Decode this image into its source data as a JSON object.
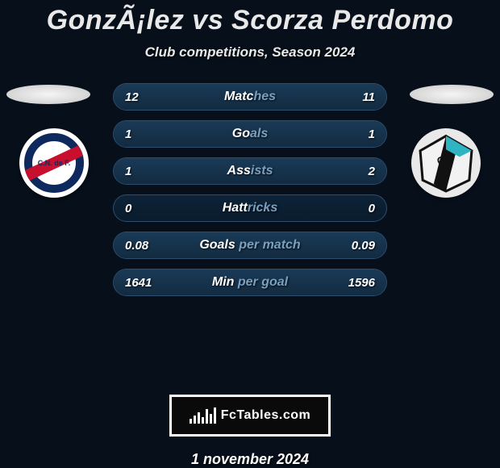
{
  "title": "GonzÃ¡lez vs Scorza Perdomo",
  "subtitle": "Club competitions, Season 2024",
  "brand": "FcTables.com",
  "date": "1 november 2024",
  "colors": {
    "background": "#060f1a",
    "row_border": "#2e4e6f",
    "row_bg_top": "#0d2338",
    "row_bg_bottom": "#0a1b2c",
    "bar_top": "#1a3a57",
    "bar_bottom": "#122b40",
    "text": "#e9e9e9",
    "label_dim": "#7aa0bf"
  },
  "badges": {
    "left": {
      "name": "Nacional",
      "text": "C.N. de F."
    },
    "right": {
      "name": "Cerro"
    }
  },
  "rows": [
    {
      "label_bright": "Matc",
      "label_dim": "hes",
      "left": "12",
      "right": "11",
      "left_pct": 52,
      "right_pct": 48
    },
    {
      "label_bright": "Go",
      "label_dim": "als",
      "left": "1",
      "right": "1",
      "left_pct": 50,
      "right_pct": 50
    },
    {
      "label_bright": "Ass",
      "label_dim": "ists",
      "left": "1",
      "right": "2",
      "left_pct": 33,
      "right_pct": 67
    },
    {
      "label_bright": "Hatt",
      "label_dim": "ricks",
      "left": "0",
      "right": "0",
      "left_pct": 0,
      "right_pct": 0
    },
    {
      "label_bright": "Goals ",
      "label_dim": "per match",
      "left": "0.08",
      "right": "0.09",
      "left_pct": 47,
      "right_pct": 53
    },
    {
      "label_bright": "Min ",
      "label_dim": "per goal",
      "left": "1641",
      "right": "1596",
      "left_pct": 51,
      "right_pct": 49
    }
  ],
  "brand_bars": [
    6,
    10,
    14,
    8,
    18,
    12,
    20
  ]
}
